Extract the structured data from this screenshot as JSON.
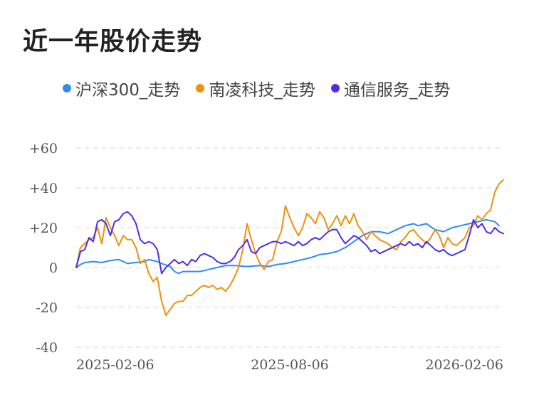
{
  "title": "近一年股价走势",
  "chart_data": {
    "type": "line",
    "title": "近一年股价走势",
    "xlabel": "",
    "ylabel": "",
    "x_tick_labels": [
      "2025-02-06",
      "2025-08-06",
      "2026-02-06"
    ],
    "y_tick_labels": [
      "+60",
      "+40",
      "+20",
      "0",
      "-20",
      "-40"
    ],
    "y_ticks": [
      60,
      40,
      20,
      0,
      -20,
      -40
    ],
    "ylim": [
      -40,
      60
    ],
    "xlim": [
      0,
      100
    ],
    "grid": true,
    "legend_position": "top-left",
    "series": [
      {
        "name": "沪深300_走势",
        "color": "#2f8df0",
        "points": [
          [
            0,
            0
          ],
          [
            1,
            1.5
          ],
          [
            2,
            2.5
          ],
          [
            4,
            3
          ],
          [
            6,
            2.5
          ],
          [
            8,
            3.5
          ],
          [
            10,
            4
          ],
          [
            12,
            2
          ],
          [
            14,
            2.5
          ],
          [
            16,
            3
          ],
          [
            17,
            4
          ],
          [
            19,
            3
          ],
          [
            20,
            2
          ],
          [
            22,
            0.5
          ],
          [
            23,
            -2
          ],
          [
            24,
            -3
          ],
          [
            25,
            -2
          ],
          [
            27,
            -2
          ],
          [
            29,
            -2
          ],
          [
            31,
            -1
          ],
          [
            33,
            0
          ],
          [
            35,
            1
          ],
          [
            37,
            1
          ],
          [
            40,
            0.5
          ],
          [
            43,
            1
          ],
          [
            45,
            0.5
          ],
          [
            47,
            1.5
          ],
          [
            49,
            2
          ],
          [
            51,
            3
          ],
          [
            53,
            4
          ],
          [
            55,
            5
          ],
          [
            57,
            6.5
          ],
          [
            59,
            7
          ],
          [
            61,
            8
          ],
          [
            63,
            10
          ],
          [
            65,
            13
          ],
          [
            67,
            16
          ],
          [
            69,
            18
          ],
          [
            71,
            18
          ],
          [
            73,
            17
          ],
          [
            75,
            19
          ],
          [
            77,
            21
          ],
          [
            79,
            22
          ],
          [
            80,
            21
          ],
          [
            82,
            22
          ],
          [
            84,
            19
          ],
          [
            86,
            18
          ],
          [
            88,
            20
          ],
          [
            90,
            21
          ],
          [
            92,
            22
          ],
          [
            94,
            23
          ],
          [
            96,
            24
          ],
          [
            98,
            23
          ],
          [
            99,
            21
          ]
        ]
      },
      {
        "name": "南凌科技_走势",
        "color": "#f0900f",
        "points": [
          [
            0,
            0
          ],
          [
            1,
            10
          ],
          [
            2,
            12
          ],
          [
            3,
            14
          ],
          [
            4,
            15
          ],
          [
            5,
            20
          ],
          [
            6,
            12
          ],
          [
            7,
            25
          ],
          [
            8,
            20
          ],
          [
            9,
            16
          ],
          [
            10,
            11
          ],
          [
            11,
            16
          ],
          [
            12,
            14
          ],
          [
            13,
            14
          ],
          [
            14,
            10
          ],
          [
            15,
            2
          ],
          [
            16,
            4
          ],
          [
            17,
            -3
          ],
          [
            18,
            -7
          ],
          [
            19,
            -5
          ],
          [
            20,
            -17
          ],
          [
            21,
            -24
          ],
          [
            22,
            -21
          ],
          [
            23,
            -18
          ],
          [
            24,
            -17
          ],
          [
            25,
            -17
          ],
          [
            26,
            -14
          ],
          [
            27,
            -14
          ],
          [
            28,
            -12
          ],
          [
            29,
            -10
          ],
          [
            30,
            -9
          ],
          [
            31,
            -10
          ],
          [
            32,
            -9
          ],
          [
            33,
            -11
          ],
          [
            34,
            -10
          ],
          [
            35,
            -12
          ],
          [
            36,
            -9
          ],
          [
            37,
            -5
          ],
          [
            38,
            0
          ],
          [
            39,
            9
          ],
          [
            40,
            22
          ],
          [
            41,
            14
          ],
          [
            42,
            7
          ],
          [
            43,
            2
          ],
          [
            44,
            -1
          ],
          [
            45,
            3
          ],
          [
            46,
            4
          ],
          [
            47,
            13
          ],
          [
            48,
            18
          ],
          [
            49,
            31
          ],
          [
            50,
            25
          ],
          [
            51,
            20
          ],
          [
            52,
            16
          ],
          [
            53,
            20
          ],
          [
            54,
            27
          ],
          [
            55,
            25
          ],
          [
            56,
            22
          ],
          [
            57,
            28
          ],
          [
            58,
            25
          ],
          [
            59,
            19
          ],
          [
            60,
            22
          ],
          [
            61,
            26
          ],
          [
            62,
            21
          ],
          [
            63,
            26
          ],
          [
            64,
            22
          ],
          [
            65,
            27
          ],
          [
            66,
            21
          ],
          [
            67,
            18
          ],
          [
            68,
            14
          ],
          [
            69,
            18
          ],
          [
            70,
            16
          ],
          [
            71,
            14
          ],
          [
            72,
            13
          ],
          [
            73,
            12
          ],
          [
            74,
            10
          ],
          [
            75,
            9
          ],
          [
            76,
            13
          ],
          [
            77,
            15
          ],
          [
            78,
            18
          ],
          [
            79,
            19
          ],
          [
            80,
            16
          ],
          [
            81,
            14
          ],
          [
            82,
            12
          ],
          [
            83,
            15
          ],
          [
            84,
            19
          ],
          [
            85,
            16
          ],
          [
            86,
            10
          ],
          [
            87,
            15
          ],
          [
            88,
            12
          ],
          [
            89,
            11
          ],
          [
            90,
            13
          ],
          [
            91,
            15
          ],
          [
            92,
            20
          ],
          [
            93,
            21
          ],
          [
            94,
            26
          ],
          [
            95,
            24
          ],
          [
            96,
            27
          ],
          [
            97,
            29
          ],
          [
            98,
            38
          ],
          [
            99,
            42
          ],
          [
            100,
            44
          ]
        ]
      },
      {
        "name": "通信服务_走势",
        "color": "#4b2ee6",
        "points": [
          [
            0,
            0
          ],
          [
            1,
            8
          ],
          [
            2,
            9
          ],
          [
            3,
            15
          ],
          [
            4,
            13
          ],
          [
            5,
            23
          ],
          [
            6,
            24
          ],
          [
            7,
            22
          ],
          [
            8,
            16
          ],
          [
            9,
            23
          ],
          [
            10,
            24
          ],
          [
            11,
            27
          ],
          [
            12,
            28
          ],
          [
            13,
            26
          ],
          [
            14,
            22
          ],
          [
            15,
            14
          ],
          [
            16,
            12
          ],
          [
            17,
            13
          ],
          [
            18,
            12
          ],
          [
            19,
            9
          ],
          [
            20,
            -3
          ],
          [
            21,
            0
          ],
          [
            22,
            2
          ],
          [
            23,
            4
          ],
          [
            24,
            2
          ],
          [
            25,
            3
          ],
          [
            26,
            1
          ],
          [
            27,
            4
          ],
          [
            28,
            3
          ],
          [
            29,
            6
          ],
          [
            30,
            7
          ],
          [
            31,
            6
          ],
          [
            32,
            5
          ],
          [
            33,
            3
          ],
          [
            34,
            2
          ],
          [
            35,
            2
          ],
          [
            36,
            3
          ],
          [
            37,
            5
          ],
          [
            38,
            9
          ],
          [
            39,
            11
          ],
          [
            40,
            14
          ],
          [
            41,
            8
          ],
          [
            42,
            7
          ],
          [
            43,
            10
          ],
          [
            44,
            11
          ],
          [
            45,
            12
          ],
          [
            46,
            13
          ],
          [
            47,
            13
          ],
          [
            48,
            12
          ],
          [
            49,
            13
          ],
          [
            50,
            12
          ],
          [
            51,
            11
          ],
          [
            52,
            13
          ],
          [
            53,
            11
          ],
          [
            54,
            12
          ],
          [
            55,
            14
          ],
          [
            56,
            15
          ],
          [
            57,
            14
          ],
          [
            58,
            16
          ],
          [
            59,
            18
          ],
          [
            60,
            19
          ],
          [
            61,
            19
          ],
          [
            62,
            15
          ],
          [
            63,
            12
          ],
          [
            64,
            14
          ],
          [
            65,
            16
          ],
          [
            66,
            15
          ],
          [
            67,
            13
          ],
          [
            68,
            11
          ],
          [
            69,
            8
          ],
          [
            70,
            9
          ],
          [
            71,
            7
          ],
          [
            72,
            8
          ],
          [
            73,
            9
          ],
          [
            74,
            10
          ],
          [
            75,
            11
          ],
          [
            76,
            12
          ],
          [
            77,
            11
          ],
          [
            78,
            13
          ],
          [
            79,
            11
          ],
          [
            80,
            12
          ],
          [
            81,
            10
          ],
          [
            82,
            13
          ],
          [
            83,
            11
          ],
          [
            84,
            9
          ],
          [
            85,
            8
          ],
          [
            86,
            9
          ],
          [
            87,
            7
          ],
          [
            88,
            6
          ],
          [
            89,
            7
          ],
          [
            90,
            8
          ],
          [
            91,
            9
          ],
          [
            92,
            16
          ],
          [
            93,
            24
          ],
          [
            94,
            20
          ],
          [
            95,
            22
          ],
          [
            96,
            18
          ],
          [
            97,
            17
          ],
          [
            98,
            20
          ],
          [
            99,
            18
          ],
          [
            100,
            17
          ]
        ]
      }
    ]
  }
}
